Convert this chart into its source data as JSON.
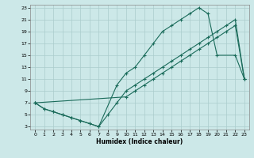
{
  "xlabel": "Humidex (Indice chaleur)",
  "bg_color": "#cce8e8",
  "grid_color": "#aacccc",
  "line_color": "#1a6b5a",
  "xlim": [
    -0.5,
    23.5
  ],
  "ylim": [
    2.5,
    23.5
  ],
  "xticks": [
    0,
    1,
    2,
    3,
    4,
    5,
    6,
    7,
    8,
    9,
    10,
    11,
    12,
    13,
    14,
    15,
    16,
    17,
    18,
    19,
    20,
    21,
    22,
    23
  ],
  "yticks": [
    3,
    5,
    7,
    9,
    11,
    13,
    15,
    17,
    19,
    21,
    23
  ],
  "line1_x": [
    0,
    1,
    2,
    3,
    4,
    5,
    6,
    7,
    8,
    9,
    10,
    11,
    12,
    13,
    14,
    15,
    16,
    17,
    18,
    19,
    20,
    21,
    22,
    23
  ],
  "line1_y": [
    7,
    6,
    5.5,
    5,
    4.5,
    4,
    3.5,
    3,
    5,
    7,
    9,
    10,
    11,
    12,
    13,
    14,
    15,
    16,
    17,
    18,
    19,
    20,
    21,
    11
  ],
  "line2_x": [
    0,
    1,
    2,
    3,
    4,
    5,
    6,
    7,
    9,
    10,
    11,
    12,
    13,
    14,
    15,
    16,
    17,
    18,
    19,
    20,
    22,
    23
  ],
  "line2_y": [
    7,
    6,
    5.5,
    5,
    4.5,
    4,
    3.5,
    3,
    10,
    12,
    13,
    15,
    17,
    19,
    20,
    21,
    22,
    23,
    22,
    15,
    15,
    11
  ],
  "line3_x": [
    0,
    10,
    11,
    12,
    13,
    14,
    15,
    16,
    17,
    18,
    19,
    20,
    21,
    22,
    23
  ],
  "line3_y": [
    7,
    8,
    9,
    10,
    11,
    12,
    13,
    14,
    15,
    16,
    17,
    18,
    19,
    20,
    11
  ]
}
